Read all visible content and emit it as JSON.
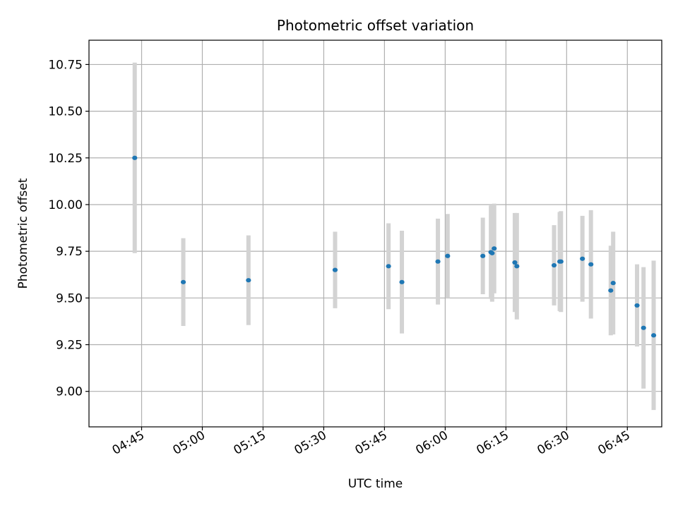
{
  "chart_data": {
    "type": "scatter",
    "title": "Photometric offset variation",
    "xlabel": "UTC time",
    "ylabel": "Photometric offset",
    "grid": true,
    "xlim_minutes": [
      272,
      413.5
    ],
    "ylim": [
      8.81,
      10.88
    ],
    "x_ticks": [
      {
        "minutes": 285,
        "label": "04:45"
      },
      {
        "minutes": 300,
        "label": "05:00"
      },
      {
        "minutes": 315,
        "label": "05:15"
      },
      {
        "minutes": 330,
        "label": "05:30"
      },
      {
        "minutes": 345,
        "label": "05:45"
      },
      {
        "minutes": 360,
        "label": "06:00"
      },
      {
        "minutes": 375,
        "label": "06:15"
      },
      {
        "minutes": 390,
        "label": "06:30"
      },
      {
        "minutes": 405,
        "label": "06:45"
      }
    ],
    "y_ticks": [
      {
        "value": 9.0,
        "label": "9.00"
      },
      {
        "value": 9.25,
        "label": "9.25"
      },
      {
        "value": 9.5,
        "label": "9.50"
      },
      {
        "value": 9.75,
        "label": "9.75"
      },
      {
        "value": 10.0,
        "label": "10.00"
      },
      {
        "value": 10.25,
        "label": "10.25"
      },
      {
        "value": 10.5,
        "label": "10.50"
      },
      {
        "value": 10.75,
        "label": "10.75"
      }
    ],
    "point_color": "#1f77b4",
    "errorbar_color": "#d3d3d3",
    "points": [
      {
        "t": 283.3,
        "y": 10.25,
        "err": 0.51
      },
      {
        "t": 295.3,
        "y": 9.585,
        "err": 0.235
      },
      {
        "t": 311.4,
        "y": 9.595,
        "err": 0.24
      },
      {
        "t": 332.8,
        "y": 9.65,
        "err": 0.205
      },
      {
        "t": 346.0,
        "y": 9.67,
        "err": 0.23
      },
      {
        "t": 349.3,
        "y": 9.585,
        "err": 0.275
      },
      {
        "t": 358.2,
        "y": 9.695,
        "err": 0.23
      },
      {
        "t": 360.6,
        "y": 9.725,
        "err": 0.225
      },
      {
        "t": 369.3,
        "y": 9.725,
        "err": 0.205
      },
      {
        "t": 371.3,
        "y": 9.745,
        "err": 0.25
      },
      {
        "t": 371.6,
        "y": 9.74,
        "err": 0.26
      },
      {
        "t": 372.1,
        "y": 9.765,
        "err": 0.24
      },
      {
        "t": 377.2,
        "y": 9.69,
        "err": 0.265
      },
      {
        "t": 377.7,
        "y": 9.67,
        "err": 0.285
      },
      {
        "t": 386.9,
        "y": 9.675,
        "err": 0.215
      },
      {
        "t": 388.3,
        "y": 9.695,
        "err": 0.265
      },
      {
        "t": 388.6,
        "y": 9.695,
        "err": 0.27
      },
      {
        "t": 393.9,
        "y": 9.71,
        "err": 0.23
      },
      {
        "t": 396.0,
        "y": 9.68,
        "err": 0.29
      },
      {
        "t": 400.9,
        "y": 9.54,
        "err": 0.24
      },
      {
        "t": 401.5,
        "y": 9.58,
        "err": 0.275
      },
      {
        "t": 407.4,
        "y": 9.46,
        "err": 0.22
      },
      {
        "t": 409.0,
        "y": 9.34,
        "err": 0.325
      },
      {
        "t": 411.5,
        "y": 9.3,
        "err": 0.4
      }
    ]
  }
}
